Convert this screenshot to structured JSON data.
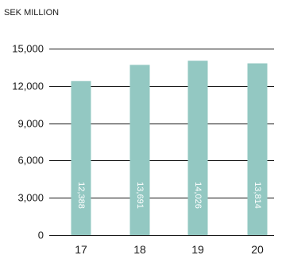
{
  "chart_data": {
    "type": "bar",
    "ylabel": "SEK MILLION",
    "categories": [
      "17",
      "18",
      "19",
      "20"
    ],
    "values": [
      12388,
      13691,
      14026,
      13814
    ],
    "value_labels": [
      "12,388",
      "13,691",
      "14,026",
      "13,814"
    ],
    "ylim": [
      0,
      15000
    ],
    "yticks": [
      0,
      3000,
      6000,
      9000,
      12000,
      15000
    ],
    "ytick_labels": [
      "0",
      "3,000",
      "6,000",
      "9,000",
      "12,000",
      "15,000"
    ],
    "grid": true,
    "colors": {
      "bar": "#93c8c2",
      "grid": "#1a1a1a",
      "text": "#1a1a1a",
      "value_label": "#ffffff"
    }
  }
}
